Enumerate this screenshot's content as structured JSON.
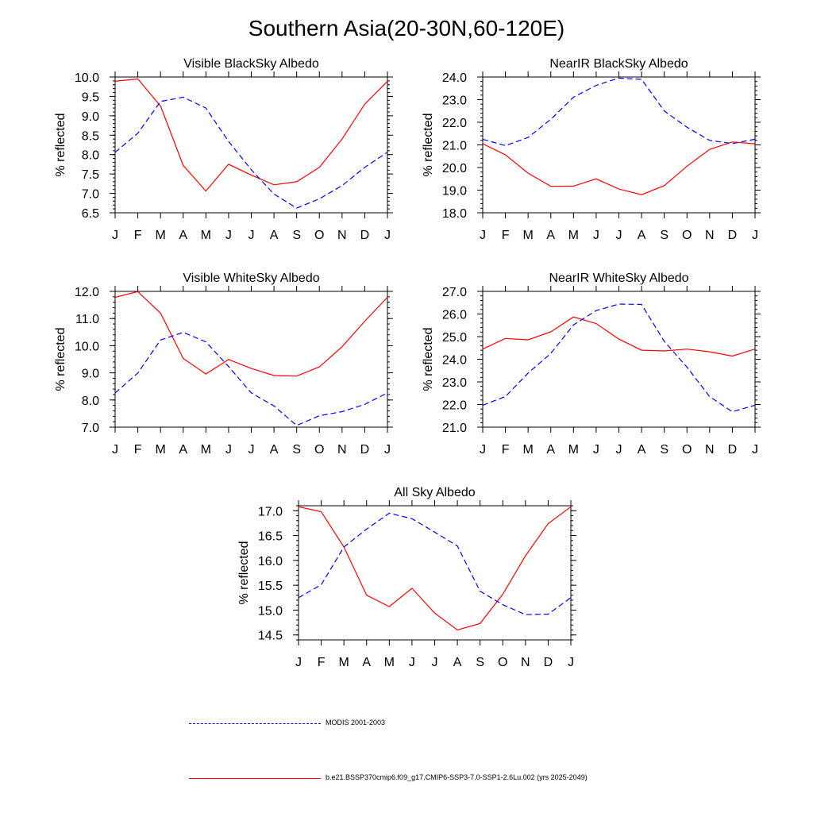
{
  "page_title": "Southern Asia(20-30N,60-120E)",
  "colors": {
    "model": "#ff0000",
    "modis": "#0000ff",
    "axis": "#000000"
  },
  "legend": {
    "modis_label": "MODIS 2001-2003",
    "model_label": "b.e21.BSSP370cmip6.f09_g17.CMIP6-SSP3-7.0-SSP1-2.6Lu.002 (yrs 2025-2049)"
  },
  "chart_data": [
    {
      "type": "line",
      "title": "Visible BlackSky Albedo",
      "ylabel": "% reflected",
      "xlabel": "",
      "categories": [
        "J",
        "F",
        "M",
        "A",
        "M",
        "J",
        "J",
        "A",
        "S",
        "O",
        "N",
        "D",
        "J"
      ],
      "ylim": [
        6.5,
        10.0
      ],
      "yticks": [
        "6.5",
        "7.0",
        "7.5",
        "8.0",
        "8.5",
        "9.0",
        "9.5",
        "10.0"
      ],
      "series": [
        {
          "name": "b.e21.BSSP370cmip6.f09_g17.CMIP6-SSP3-7.0-SSP1-2.6Lu.002 (yrs 2025-2049)",
          "style": "solid",
          "color": "#ff0000",
          "values": [
            9.89,
            9.95,
            9.25,
            7.72,
            7.06,
            7.75,
            7.47,
            7.22,
            7.3,
            7.67,
            8.4,
            9.3,
            9.89
          ]
        },
        {
          "name": "MODIS 2001-2003",
          "style": "dashed",
          "color": "#0000ff",
          "values": [
            8.06,
            8.55,
            9.37,
            9.48,
            9.2,
            8.34,
            7.61,
            6.98,
            6.62,
            6.86,
            7.2,
            7.67,
            8.06
          ]
        }
      ]
    },
    {
      "type": "line",
      "title": "NearIR BlackSky Albedo",
      "ylabel": "% reflected",
      "xlabel": "",
      "categories": [
        "J",
        "F",
        "M",
        "A",
        "M",
        "J",
        "J",
        "A",
        "S",
        "O",
        "N",
        "D",
        "J"
      ],
      "ylim": [
        18.0,
        24.0
      ],
      "yticks": [
        "18.0",
        "19.0",
        "20.0",
        "21.0",
        "22.0",
        "23.0",
        "24.0"
      ],
      "series": [
        {
          "name": "b.e21.BSSP370cmip6.f09_g17.CMIP6-SSP3-7.0-SSP1-2.6Lu.002 (yrs 2025-2049)",
          "style": "solid",
          "color": "#ff0000",
          "values": [
            21.05,
            20.56,
            19.75,
            19.17,
            19.18,
            19.5,
            19.05,
            18.8,
            19.2,
            20.06,
            20.8,
            21.13,
            21.05
          ]
        },
        {
          "name": "MODIS 2001-2003",
          "style": "dashed",
          "color": "#0000ff",
          "values": [
            21.25,
            20.97,
            21.33,
            22.13,
            23.11,
            23.63,
            23.95,
            23.9,
            22.5,
            21.78,
            21.2,
            21.06,
            21.25
          ]
        }
      ]
    },
    {
      "type": "line",
      "title": "Visible WhiteSky Albedo",
      "ylabel": "% reflected",
      "xlabel": "",
      "categories": [
        "J",
        "F",
        "M",
        "A",
        "M",
        "J",
        "J",
        "A",
        "S",
        "O",
        "N",
        "D",
        "J"
      ],
      "ylim": [
        7.0,
        12.0
      ],
      "yticks": [
        "7.0",
        "8.0",
        "9.0",
        "10.0",
        "11.0",
        "12.0"
      ],
      "series": [
        {
          "name": "b.e21.BSSP370cmip6.f09_g17.CMIP6-SSP3-7.0-SSP1-2.6Lu.002 (yrs 2025-2049)",
          "style": "solid",
          "color": "#ff0000",
          "values": [
            11.78,
            11.99,
            11.2,
            9.53,
            8.96,
            9.49,
            9.16,
            8.9,
            8.88,
            9.22,
            9.96,
            10.9,
            11.78
          ]
        },
        {
          "name": "MODIS 2001-2003",
          "style": "dashed",
          "color": "#0000ff",
          "values": [
            8.26,
            8.99,
            10.21,
            10.49,
            10.14,
            9.23,
            8.26,
            7.78,
            7.06,
            7.42,
            7.57,
            7.84,
            8.26
          ]
        }
      ]
    },
    {
      "type": "line",
      "title": "NearIR WhiteSky Albedo",
      "ylabel": "% reflected",
      "xlabel": "",
      "categories": [
        "J",
        "F",
        "M",
        "A",
        "M",
        "J",
        "J",
        "A",
        "S",
        "O",
        "N",
        "D",
        "J"
      ],
      "ylim": [
        21.0,
        27.0
      ],
      "yticks": [
        "21.0",
        "22.0",
        "23.0",
        "24.0",
        "25.0",
        "26.0",
        "27.0"
      ],
      "series": [
        {
          "name": "b.e21.BSSP370cmip6.f09_g17.CMIP6-SSP3-7.0-SSP1-2.6Lu.002 (yrs 2025-2049)",
          "style": "solid",
          "color": "#ff0000",
          "values": [
            24.45,
            24.92,
            24.86,
            25.21,
            25.87,
            25.58,
            24.89,
            24.4,
            24.37,
            24.45,
            24.33,
            24.14,
            24.45
          ]
        },
        {
          "name": "MODIS 2001-2003",
          "style": "dashed",
          "color": "#0000ff",
          "values": [
            21.97,
            22.35,
            23.39,
            24.26,
            25.52,
            26.15,
            26.44,
            26.42,
            24.79,
            23.65,
            22.35,
            21.68,
            21.97
          ]
        }
      ]
    },
    {
      "type": "line",
      "title": "All Sky Albedo",
      "ylabel": "% reflected",
      "xlabel": "",
      "categories": [
        "J",
        "F",
        "M",
        "A",
        "M",
        "J",
        "J",
        "A",
        "S",
        "O",
        "N",
        "D",
        "J"
      ],
      "ylim": [
        14.4,
        17.1
      ],
      "yticks": [
        "14.5",
        "15.0",
        "15.5",
        "16.0",
        "16.5",
        "17.0"
      ],
      "series": [
        {
          "name": "b.e21.BSSP370cmip6.f09_g17.CMIP6-SSP3-7.0-SSP1-2.6Lu.002 (yrs 2025-2049)",
          "style": "solid",
          "color": "#ff0000",
          "values": [
            17.08,
            16.98,
            16.27,
            15.3,
            15.07,
            15.44,
            14.94,
            14.6,
            14.73,
            15.32,
            16.09,
            16.74,
            17.08
          ]
        },
        {
          "name": "MODIS 2001-2003",
          "style": "dashed",
          "color": "#0000ff",
          "values": [
            15.25,
            15.51,
            16.27,
            16.63,
            16.95,
            16.84,
            16.57,
            16.29,
            15.38,
            15.11,
            14.91,
            14.92,
            15.25
          ]
        }
      ]
    }
  ]
}
